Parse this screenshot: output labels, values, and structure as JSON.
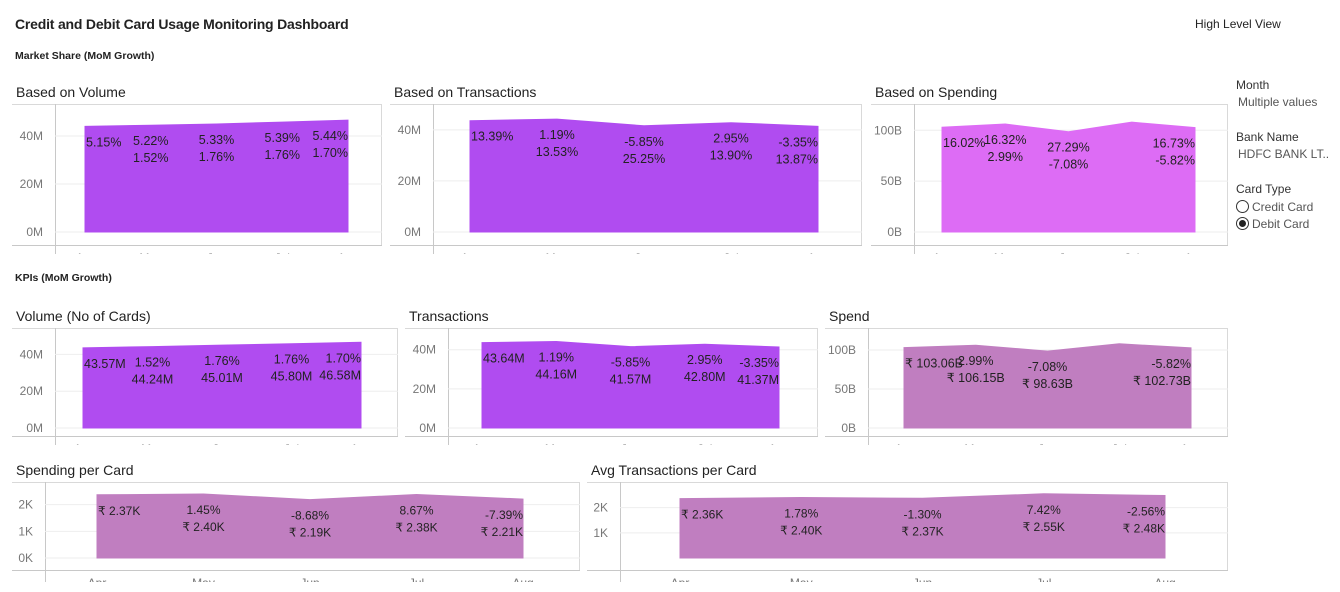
{
  "header": {
    "title": "Credit and Debit Card Usage Monitoring Dashboard",
    "view_button": "High Level View"
  },
  "sections": {
    "market_share": "Market Share (MoM Growth)",
    "kpis": "KPIs (MoM Growth)"
  },
  "filters": {
    "month_label": "Month",
    "month_value": "Multiple values",
    "bank_label": "Bank Name",
    "bank_value": "HDFC BANK LT..",
    "card_type_label": "Card Type",
    "card_type_options": [
      "Credit Card",
      "Debit Card"
    ],
    "card_type_selected": "Debit Card"
  },
  "chart_data": [
    {
      "id": "vol_share",
      "title": "Based on Volume",
      "type": "area",
      "categories": [
        "Apr",
        "May",
        "Jun",
        "Jul",
        "Aug"
      ],
      "values": [
        44,
        44.5,
        45,
        45.8,
        46.6
      ],
      "yticks": [
        "0M",
        "20M",
        "40M"
      ],
      "ytick_values": [
        0,
        20,
        40
      ],
      "ylim": [
        0,
        50
      ],
      "color": "#b04cf0",
      "labels": [
        [
          "5.15%"
        ],
        [
          "5.22%",
          "1.52%"
        ],
        [
          "5.33%",
          "1.76%"
        ],
        [
          "5.39%",
          "1.76%"
        ],
        [
          "5.44%",
          "1.70%"
        ]
      ]
    },
    {
      "id": "txn_share",
      "title": "Based on Transactions",
      "type": "area",
      "categories": [
        "Apr",
        "May",
        "Jun",
        "Jul",
        "Aug"
      ],
      "values": [
        43.6,
        44.2,
        41.6,
        42.8,
        41.4
      ],
      "yticks": [
        "0M",
        "20M",
        "40M"
      ],
      "ytick_values": [
        0,
        20,
        40
      ],
      "ylim": [
        0,
        47
      ],
      "color": "#b04cf0",
      "labels": [
        [
          "13.39%"
        ],
        [
          "1.19%",
          "13.53%"
        ],
        [
          "-5.85%",
          "25.25%"
        ],
        [
          "2.95%",
          "13.90%"
        ],
        [
          "-3.35%",
          "13.87%"
        ]
      ]
    },
    {
      "id": "spend_share",
      "title": "Based on Spending",
      "type": "area",
      "categories": [
        "Apr",
        "May",
        "Jun",
        "Jul",
        "Aug"
      ],
      "values": [
        103.06,
        106.15,
        98.63,
        108,
        102.73
      ],
      "yticks": [
        "0B",
        "50B",
        "100B"
      ],
      "ytick_values": [
        0,
        50,
        100
      ],
      "ylim": [
        0,
        118
      ],
      "color": "#dd6cf5",
      "labels": [
        [
          "16.02%"
        ],
        [
          "16.32%",
          "2.99%"
        ],
        [
          "27.29%",
          "-7.08%"
        ],
        [],
        [
          "16.73%",
          "-5.82%"
        ]
      ]
    },
    {
      "id": "volume_kpi",
      "title": "Volume (No of Cards)",
      "type": "area",
      "categories": [
        "Apr",
        "May",
        "Jun",
        "Jul",
        "Aug"
      ],
      "values": [
        43.57,
        44.24,
        45.01,
        45.8,
        46.58
      ],
      "yticks": [
        "0M",
        "20M",
        "40M"
      ],
      "ytick_values": [
        0,
        20,
        40
      ],
      "ylim": [
        0,
        50
      ],
      "color": "#b04cf0",
      "labels": [
        [
          "43.57M"
        ],
        [
          "1.52%",
          "44.24M"
        ],
        [
          "1.76%",
          "45.01M"
        ],
        [
          "1.76%",
          "45.80M"
        ],
        [
          "1.70%",
          "46.58M"
        ]
      ]
    },
    {
      "id": "txn_kpi",
      "title": "Transactions",
      "type": "area",
      "categories": [
        "Apr",
        "May",
        "Jun",
        "Jul",
        "Aug"
      ],
      "values": [
        43.64,
        44.16,
        41.57,
        42.8,
        41.37
      ],
      "yticks": [
        "0M",
        "20M",
        "40M"
      ],
      "ytick_values": [
        0,
        20,
        40
      ],
      "ylim": [
        0,
        47
      ],
      "color": "#b04cf0",
      "labels": [
        [
          "43.64M"
        ],
        [
          "1.19%",
          "44.16M"
        ],
        [
          "-5.85%",
          "41.57M"
        ],
        [
          "2.95%",
          "42.80M"
        ],
        [
          "-3.35%",
          "41.37M"
        ]
      ]
    },
    {
      "id": "spend_kpi",
      "title": "Spend",
      "type": "area",
      "categories": [
        "Apr",
        "May",
        "Jun",
        "Jul",
        "Aug"
      ],
      "values": [
        103.06,
        106.15,
        98.63,
        108,
        102.73
      ],
      "yticks": [
        "0B",
        "50B",
        "100B"
      ],
      "ytick_values": [
        0,
        50,
        100
      ],
      "ylim": [
        0,
        118
      ],
      "color": "#c07ec0",
      "labels": [
        [
          "₹ 103.06B"
        ],
        [
          "2.99%",
          "₹ 106.15B"
        ],
        [
          "-7.08%",
          "₹ 98.63B"
        ],
        [],
        [
          "-5.82%",
          "₹ 102.73B"
        ]
      ]
    },
    {
      "id": "spc_kpi",
      "title": "Spending per Card",
      "type": "area",
      "categories": [
        "Apr",
        "May",
        "Jun",
        "Jul",
        "Aug"
      ],
      "values": [
        2.37,
        2.4,
        2.19,
        2.38,
        2.21
      ],
      "yticks": [
        "0K",
        "1K",
        "2K"
      ],
      "ytick_values": [
        0,
        1,
        2
      ],
      "ylim": [
        0,
        2.55
      ],
      "color": "#c07ec0",
      "labels": [
        [
          "₹ 2.37K"
        ],
        [
          "1.45%",
          "₹ 2.40K"
        ],
        [
          "-8.68%",
          "₹ 2.19K"
        ],
        [
          "8.67%",
          "₹ 2.38K"
        ],
        [
          "-7.39%",
          "₹ 2.21K"
        ]
      ]
    },
    {
      "id": "atpc_kpi",
      "title": "Avg Transactions per Card",
      "type": "area",
      "categories": [
        "Apr",
        "May",
        "Jun",
        "Jul",
        "Aug"
      ],
      "values": [
        2.36,
        2.4,
        2.37,
        2.55,
        2.48
      ],
      "yticks": [
        "1K",
        "2K"
      ],
      "ytick_values": [
        1,
        2
      ],
      "ylim": [
        0,
        2.7
      ],
      "color": "#c07ec0",
      "labels": [
        [
          "₹ 2.36K"
        ],
        [
          "1.78%",
          "₹ 2.40K"
        ],
        [
          "-1.30%",
          "₹ 2.37K"
        ],
        [
          "7.42%",
          "₹ 2.55K"
        ],
        [
          "-2.56%",
          "₹ 2.48K"
        ]
      ]
    }
  ]
}
